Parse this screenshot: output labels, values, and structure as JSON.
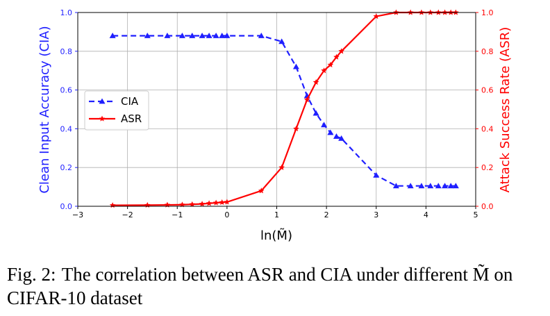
{
  "chart_data": {
    "type": "line",
    "xlabel": "ln(M̃)",
    "ylabel_left": "Clean Input Accuracy (CIA)",
    "ylabel_right": "Attack Success Rate (ASR)",
    "xlim": [
      -3,
      5
    ],
    "ylim_left": [
      0,
      1.0
    ],
    "ylim_right": [
      0,
      1.0
    ],
    "x_ticks": [
      "−3",
      "−2",
      "−1",
      "0",
      "1",
      "2",
      "3",
      "4",
      "5"
    ],
    "y_ticks_left": [
      "0.0",
      "0.2",
      "0.4",
      "0.6",
      "0.8",
      "1.0"
    ],
    "y_ticks_right": [
      "0.0",
      "0.2",
      "0.4",
      "0.6",
      "0.8",
      "1.0"
    ],
    "grid": true,
    "legend_position": "center-left",
    "series": [
      {
        "name": "CIA",
        "axis": "left",
        "color": "#1f1fff",
        "style": "dashed",
        "marker": "triangle",
        "x": [
          -2.3,
          -1.6,
          -1.2,
          -0.9,
          -0.7,
          -0.5,
          -0.36,
          -0.22,
          -0.1,
          0.0,
          0.69,
          1.1,
          1.39,
          1.61,
          1.79,
          1.95,
          2.08,
          2.2,
          2.3,
          3.0,
          3.4,
          3.69,
          3.91,
          4.09,
          4.25,
          4.38,
          4.5,
          4.6
        ],
        "y": [
          0.88,
          0.88,
          0.88,
          0.88,
          0.88,
          0.88,
          0.88,
          0.88,
          0.88,
          0.88,
          0.88,
          0.85,
          0.72,
          0.57,
          0.48,
          0.42,
          0.38,
          0.36,
          0.35,
          0.16,
          0.105,
          0.105,
          0.105,
          0.105,
          0.105,
          0.105,
          0.105,
          0.105
        ]
      },
      {
        "name": "ASR",
        "axis": "right",
        "color": "#ff0000",
        "style": "solid",
        "marker": "star",
        "x": [
          -2.3,
          -1.6,
          -1.2,
          -0.9,
          -0.7,
          -0.5,
          -0.36,
          -0.22,
          -0.1,
          0.0,
          0.69,
          1.1,
          1.39,
          1.61,
          1.79,
          1.95,
          2.08,
          2.2,
          2.3,
          3.0,
          3.4,
          3.69,
          3.91,
          4.09,
          4.25,
          4.38,
          4.5,
          4.6
        ],
        "y": [
          0.005,
          0.006,
          0.007,
          0.008,
          0.01,
          0.012,
          0.015,
          0.018,
          0.02,
          0.022,
          0.08,
          0.2,
          0.4,
          0.55,
          0.64,
          0.7,
          0.73,
          0.77,
          0.8,
          0.98,
          1.0,
          1.0,
          1.0,
          1.0,
          1.0,
          1.0,
          1.0,
          1.0
        ]
      }
    ]
  },
  "caption": {
    "label": "Fig. 2:",
    "text": "The correlation between ASR and CIA under different M̃ on CIFAR-10 dataset"
  }
}
